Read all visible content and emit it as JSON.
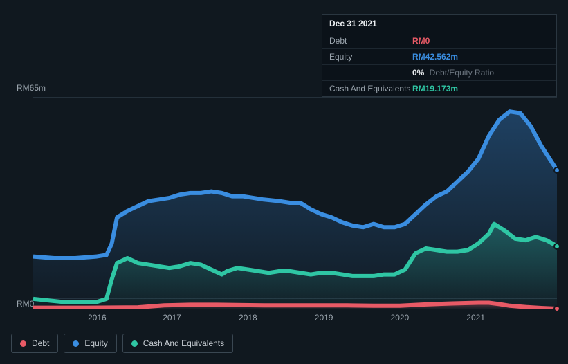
{
  "tooltip": {
    "date": "Dec 31 2021",
    "rows": [
      {
        "label": "Debt",
        "value": "RM0",
        "cls": "debt"
      },
      {
        "label": "Equity",
        "value": "RM42.562m",
        "cls": "equity"
      },
      {
        "label": "",
        "ratio_pct": "0%",
        "ratio_label": "Debt/Equity Ratio"
      },
      {
        "label": "Cash And Equivalents",
        "value": "RM19.173m",
        "cls": "cash"
      }
    ]
  },
  "chart": {
    "type": "area",
    "background_color": "#10181f",
    "grid_color": "#24303a",
    "axis_label_color": "#9aa4ad",
    "label_fontsize": 12,
    "y_max": 65,
    "y_min": 0,
    "y_top_label": "RM65m",
    "y_bottom_label": "RM0",
    "x_years": [
      "2016",
      "2017",
      "2018",
      "2019",
      "2020",
      "2021"
    ],
    "x_year_positions_pct": [
      12.2,
      26.5,
      41.0,
      55.5,
      70.0,
      84.5
    ],
    "series": {
      "equity": {
        "label": "Equity",
        "stroke": "#3a8de0",
        "fill_top": "rgba(58,141,224,0.35)",
        "fill_bottom": "rgba(58,141,224,0.02)",
        "line_width": 2,
        "points": [
          [
            0,
            16
          ],
          [
            4,
            15.5
          ],
          [
            8,
            15.5
          ],
          [
            12,
            16
          ],
          [
            14,
            16.5
          ],
          [
            15,
            20
          ],
          [
            16,
            28
          ],
          [
            18,
            30
          ],
          [
            20,
            31.5
          ],
          [
            22,
            33
          ],
          [
            24,
            33.5
          ],
          [
            26,
            34
          ],
          [
            28,
            35
          ],
          [
            30,
            35.5
          ],
          [
            32,
            35.5
          ],
          [
            34,
            36
          ],
          [
            36,
            35.5
          ],
          [
            38,
            34.5
          ],
          [
            40,
            34.5
          ],
          [
            42,
            34
          ],
          [
            44,
            33.5
          ],
          [
            47,
            33
          ],
          [
            49,
            32.5
          ],
          [
            51,
            32.5
          ],
          [
            53,
            30.5
          ],
          [
            55,
            29
          ],
          [
            57,
            28
          ],
          [
            59,
            26.5
          ],
          [
            61,
            25.5
          ],
          [
            63,
            25
          ],
          [
            65,
            26
          ],
          [
            67,
            25
          ],
          [
            69,
            25
          ],
          [
            71,
            26
          ],
          [
            73,
            29
          ],
          [
            75,
            32
          ],
          [
            77,
            34.5
          ],
          [
            79,
            36
          ],
          [
            81,
            39
          ],
          [
            83,
            42
          ],
          [
            85,
            46
          ],
          [
            87,
            53
          ],
          [
            89,
            58
          ],
          [
            91,
            60.5
          ],
          [
            93,
            60
          ],
          [
            95,
            56
          ],
          [
            97,
            50
          ],
          [
            100,
            42.5
          ]
        ]
      },
      "cash": {
        "label": "Cash And Equivalents",
        "stroke": "#2fc6a4",
        "fill_top": "rgba(47,198,164,0.30)",
        "fill_bottom": "rgba(47,198,164,0.02)",
        "line_width": 2,
        "points": [
          [
            0,
            3
          ],
          [
            3,
            2.5
          ],
          [
            6,
            2
          ],
          [
            9,
            2
          ],
          [
            12,
            2
          ],
          [
            14,
            3
          ],
          [
            15,
            9
          ],
          [
            16,
            14
          ],
          [
            18,
            15.5
          ],
          [
            20,
            14
          ],
          [
            22,
            13.5
          ],
          [
            24,
            13
          ],
          [
            26,
            12.5
          ],
          [
            28,
            13
          ],
          [
            30,
            14
          ],
          [
            32,
            13.5
          ],
          [
            34,
            12
          ],
          [
            36,
            10.5
          ],
          [
            37,
            11.5
          ],
          [
            39,
            12.5
          ],
          [
            41,
            12
          ],
          [
            43,
            11.5
          ],
          [
            45,
            11
          ],
          [
            47,
            11.5
          ],
          [
            49,
            11.5
          ],
          [
            51,
            11
          ],
          [
            53,
            10.5
          ],
          [
            55,
            11
          ],
          [
            57,
            11
          ],
          [
            59,
            10.5
          ],
          [
            61,
            10
          ],
          [
            63,
            10
          ],
          [
            65,
            10
          ],
          [
            67,
            10.5
          ],
          [
            69,
            10.5
          ],
          [
            71,
            12
          ],
          [
            73,
            17
          ],
          [
            75,
            18.5
          ],
          [
            77,
            18
          ],
          [
            79,
            17.5
          ],
          [
            81,
            17.5
          ],
          [
            83,
            18
          ],
          [
            85,
            20
          ],
          [
            87,
            23
          ],
          [
            88,
            26
          ],
          [
            90,
            24
          ],
          [
            92,
            21.5
          ],
          [
            94,
            21
          ],
          [
            96,
            22
          ],
          [
            98,
            21
          ],
          [
            100,
            19.2
          ]
        ]
      },
      "debt": {
        "label": "Debt",
        "stroke": "#e85a66",
        "fill_top": "rgba(232,90,102,0.35)",
        "fill_bottom": "rgba(232,90,102,0.04)",
        "line_width": 2,
        "points": [
          [
            0,
            0.3
          ],
          [
            10,
            0.3
          ],
          [
            20,
            0.4
          ],
          [
            25,
            1.0
          ],
          [
            30,
            1.2
          ],
          [
            35,
            1.2
          ],
          [
            40,
            1.1
          ],
          [
            45,
            1.0
          ],
          [
            50,
            1.0
          ],
          [
            55,
            1.0
          ],
          [
            60,
            1.0
          ],
          [
            65,
            0.9
          ],
          [
            70,
            0.9
          ],
          [
            75,
            1.3
          ],
          [
            80,
            1.6
          ],
          [
            85,
            1.8
          ],
          [
            87,
            1.8
          ],
          [
            89,
            1.4
          ],
          [
            91,
            0.9
          ],
          [
            94,
            0.5
          ],
          [
            97,
            0.2
          ],
          [
            100,
            0
          ]
        ]
      }
    },
    "draw_order": [
      "equity",
      "cash",
      "debt"
    ],
    "endpoints": [
      {
        "series": "equity",
        "color": "#3a8de0"
      },
      {
        "series": "cash",
        "color": "#2fc6a4"
      },
      {
        "series": "debt",
        "color": "#e85a66"
      }
    ]
  },
  "legend": [
    {
      "key": "debt",
      "label": "Debt",
      "color": "#e85a66"
    },
    {
      "key": "equity",
      "label": "Equity",
      "color": "#3a8de0"
    },
    {
      "key": "cash",
      "label": "Cash And Equivalents",
      "color": "#2fc6a4"
    }
  ]
}
